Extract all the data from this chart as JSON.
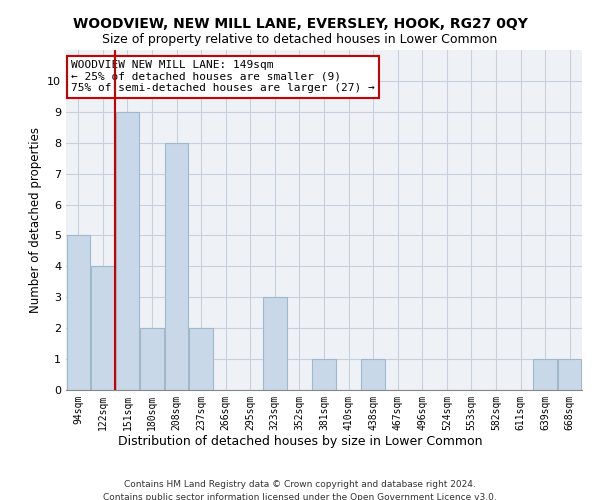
{
  "title": "WOODVIEW, NEW MILL LANE, EVERSLEY, HOOK, RG27 0QY",
  "subtitle": "Size of property relative to detached houses in Lower Common",
  "xlabel": "Distribution of detached houses by size in Lower Common",
  "ylabel": "Number of detached properties",
  "categories": [
    "94sqm",
    "122sqm",
    "151sqm",
    "180sqm",
    "208sqm",
    "237sqm",
    "266sqm",
    "295sqm",
    "323sqm",
    "352sqm",
    "381sqm",
    "410sqm",
    "438sqm",
    "467sqm",
    "496sqm",
    "524sqm",
    "553sqm",
    "582sqm",
    "611sqm",
    "639sqm",
    "668sqm"
  ],
  "values": [
    5,
    4,
    9,
    2,
    8,
    2,
    0,
    0,
    3,
    0,
    1,
    0,
    1,
    0,
    0,
    0,
    0,
    0,
    0,
    1,
    1
  ],
  "bar_color": "#c8d8e8",
  "bar_edge_color": "#a0b8cc",
  "highlight_line_index": 2,
  "highlight_line_color": "#cc0000",
  "annotation_text": "WOODVIEW NEW MILL LANE: 149sqm\n← 25% of detached houses are smaller (9)\n75% of semi-detached houses are larger (27) →",
  "annotation_box_color": "#ffffff",
  "annotation_box_edge_color": "#cc0000",
  "ylim": [
    0,
    11
  ],
  "yticks": [
    0,
    1,
    2,
    3,
    4,
    5,
    6,
    7,
    8,
    9,
    10
  ],
  "footer_line1": "Contains HM Land Registry data © Crown copyright and database right 2024.",
  "footer_line2": "Contains public sector information licensed under the Open Government Licence v3.0.",
  "bg_color": "#eef2f7",
  "grid_color": "#c8d0de",
  "title_fontsize": 10,
  "subtitle_fontsize": 9
}
